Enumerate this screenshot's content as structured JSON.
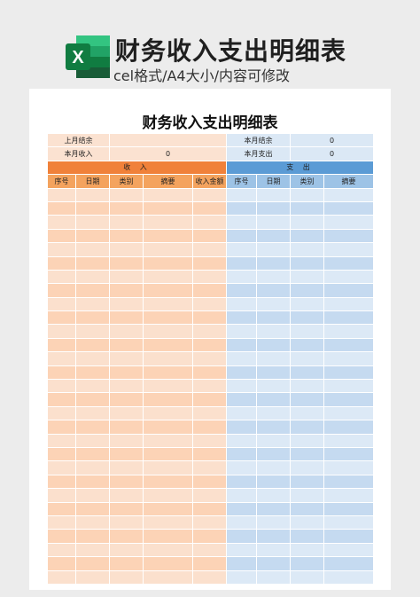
{
  "header": {
    "title": "财务收入支出明细表",
    "subtitle": "cel格式/A4大小/内容可修改",
    "logo_letter": "X"
  },
  "sheet": {
    "title": "财务收入支出明细表",
    "summary": {
      "prev_balance_label": "上月结余",
      "prev_balance_value": "",
      "month_balance_label": "本月结余",
      "month_balance_value": "0",
      "month_income_label": "本月收入",
      "month_income_value": "0",
      "month_expense_label": "本月支出",
      "month_expense_value": "0"
    },
    "income_section": "收 入",
    "expense_section": "支 出",
    "income_columns": [
      "序号",
      "日期",
      "类别",
      "摘要",
      "收入金额"
    ],
    "expense_columns": [
      "序号",
      "日期",
      "类别",
      "摘要"
    ],
    "empty_rows": 29
  },
  "colors": {
    "income_accent": "#f0813a",
    "expense_accent": "#5b9bd5",
    "excel_green": "#1f7a45"
  }
}
